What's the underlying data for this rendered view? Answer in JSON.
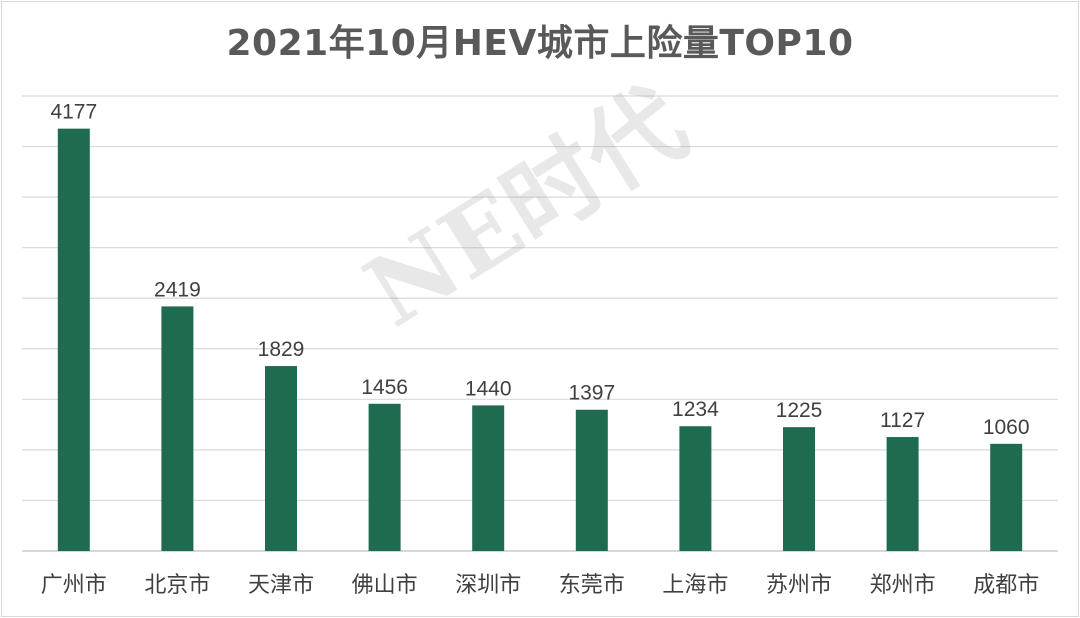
{
  "chart_data": {
    "type": "bar",
    "title": "2021年10月HEV城市上险量TOP10",
    "categories": [
      "广州市",
      "北京市",
      "天津市",
      "佛山市",
      "深圳市",
      "东莞市",
      "上海市",
      "苏州市",
      "郑州市",
      "成都市"
    ],
    "values": [
      4177,
      2419,
      1829,
      1456,
      1440,
      1397,
      1234,
      1225,
      1127,
      1060
    ],
    "xlabel": "",
    "ylabel": "",
    "ylim": [
      0,
      4500
    ],
    "y_gridline_step": 500,
    "grid": true,
    "legend": "none",
    "bar_color": "#1f6b4f",
    "data_labels": true
  },
  "watermark": "NE时代",
  "colors": {
    "title": "#595959",
    "labels": "#404040",
    "gridline": "#d9d9d9"
  }
}
